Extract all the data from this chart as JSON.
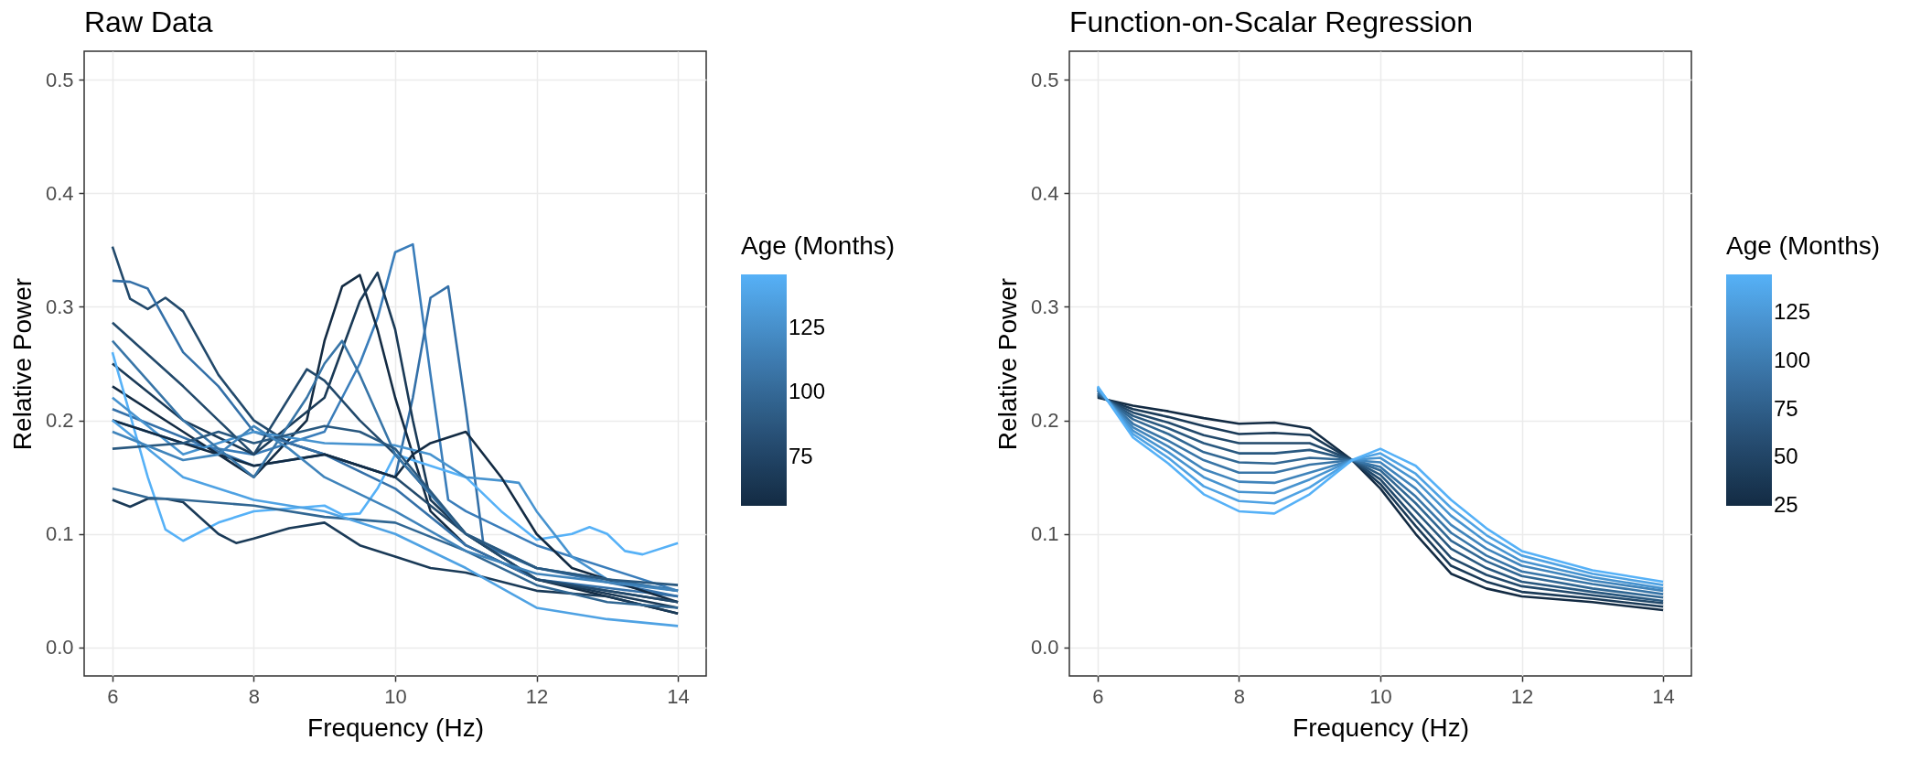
{
  "chart_data": [
    {
      "type": "line",
      "title": "Raw Data",
      "xlabel": "Frequency (Hz)",
      "ylabel": "Relative Power",
      "clabel": "Age (Months)",
      "clim": [
        56,
        146
      ],
      "cticks": [
        75,
        100,
        125
      ],
      "xlim": [
        5.6,
        14.4
      ],
      "xticks": [
        6,
        8,
        10,
        12,
        14
      ],
      "ylim": [
        -0.025,
        0.525
      ],
      "yticks": [
        {
          "value": 0,
          "label": "0.0"
        },
        0.1,
        0.2,
        0.3,
        0.4,
        0.5
      ],
      "grid": true,
      "line_style": "solid",
      "series": [
        {
          "color": "#3A7DBA",
          "x": [
            6,
            7,
            8,
            9,
            9.5,
            9.75,
            10,
            10.25,
            10.5,
            10.75,
            11,
            12,
            14
          ],
          "values": [
            0.2,
            0.18,
            0.17,
            0.19,
            0.25,
            0.29,
            0.348,
            0.355,
            0.24,
            0.13,
            0.12,
            0.09,
            0.05
          ]
        },
        {
          "color": "#3470A8",
          "x": [
            6,
            8,
            9,
            10,
            10.25,
            10.5,
            10.75,
            11,
            11.25,
            12,
            14
          ],
          "values": [
            0.21,
            0.16,
            0.17,
            0.15,
            0.22,
            0.308,
            0.318,
            0.21,
            0.09,
            0.07,
            0.045
          ]
        },
        {
          "color": "#132B43",
          "x": [
            6,
            7,
            8,
            8.75,
            9,
            9.25,
            9.5,
            9.75,
            10,
            10.5,
            11,
            12,
            14
          ],
          "values": [
            0.23,
            0.19,
            0.15,
            0.2,
            0.27,
            0.318,
            0.328,
            0.28,
            0.22,
            0.12,
            0.09,
            0.06,
            0.03
          ]
        },
        {
          "color": "#1A3A57",
          "x": [
            6,
            7,
            8,
            9,
            9.5,
            9.75,
            10,
            10.25,
            10.5,
            11,
            12,
            14
          ],
          "values": [
            0.25,
            0.2,
            0.17,
            0.22,
            0.305,
            0.33,
            0.28,
            0.2,
            0.13,
            0.1,
            0.06,
            0.035
          ]
        },
        {
          "color": "#22496B",
          "x": [
            6,
            6.25,
            6.5,
            6.75,
            7,
            7.5,
            8,
            8.5,
            9,
            10,
            11,
            12,
            14
          ],
          "values": [
            0.353,
            0.307,
            0.298,
            0.308,
            0.296,
            0.24,
            0.2,
            0.18,
            0.17,
            0.15,
            0.1,
            0.06,
            0.04
          ]
        },
        {
          "color": "#3470A8",
          "x": [
            6,
            6.25,
            6.5,
            7,
            7.5,
            8,
            9,
            10,
            11,
            12,
            14
          ],
          "values": [
            0.323,
            0.322,
            0.316,
            0.26,
            0.23,
            0.19,
            0.17,
            0.14,
            0.09,
            0.06,
            0.045
          ]
        },
        {
          "color": "#56B1F7",
          "x": [
            6,
            6.5,
            6.75,
            7,
            7.5,
            8,
            9,
            9.25,
            9.5,
            9.75,
            10,
            11,
            11.5,
            12,
            12.5,
            12.75,
            13,
            13.25,
            13.5,
            14
          ],
          "values": [
            0.26,
            0.15,
            0.104,
            0.094,
            0.11,
            0.12,
            0.125,
            0.117,
            0.118,
            0.14,
            0.17,
            0.15,
            0.12,
            0.095,
            0.1,
            0.106,
            0.1,
            0.085,
            0.082,
            0.092
          ]
        },
        {
          "color": "#4793CF",
          "x": [
            6,
            7,
            8,
            9,
            10,
            10.5,
            11,
            11.5,
            11.75,
            12,
            12.5,
            13,
            14
          ],
          "values": [
            0.22,
            0.17,
            0.19,
            0.18,
            0.178,
            0.17,
            0.15,
            0.147,
            0.145,
            0.12,
            0.08,
            0.06,
            0.05
          ]
        },
        {
          "color": "#132B43",
          "x": [
            6,
            7,
            8,
            9,
            10,
            10.25,
            10.5,
            10.75,
            11,
            11.5,
            12,
            12.5,
            14
          ],
          "values": [
            0.2,
            0.18,
            0.16,
            0.17,
            0.15,
            0.17,
            0.18,
            0.185,
            0.19,
            0.15,
            0.1,
            0.07,
            0.04
          ]
        },
        {
          "color": "#1A3A57",
          "x": [
            6,
            6.25,
            6.5,
            6.75,
            7,
            7.5,
            7.75,
            8,
            8.5,
            9,
            9.5,
            10,
            10.5,
            11,
            12,
            13,
            14
          ],
          "values": [
            0.13,
            0.124,
            0.131,
            0.131,
            0.128,
            0.1,
            0.092,
            0.096,
            0.105,
            0.11,
            0.09,
            0.08,
            0.07,
            0.066,
            0.05,
            0.045,
            0.03
          ]
        },
        {
          "color": "#316793",
          "x": [
            6,
            6.5,
            7,
            8,
            9,
            10,
            11,
            12,
            13,
            14
          ],
          "values": [
            0.14,
            0.132,
            0.13,
            0.125,
            0.115,
            0.11,
            0.085,
            0.055,
            0.04,
            0.035
          ]
        },
        {
          "color": "#4FA2E3",
          "x": [
            6,
            7,
            8,
            9,
            10,
            11,
            12,
            13,
            14
          ],
          "values": [
            0.2,
            0.15,
            0.13,
            0.12,
            0.1,
            0.07,
            0.035,
            0.025,
            0.019
          ]
        },
        {
          "color": "#22496B",
          "x": [
            6,
            7,
            7.5,
            8,
            8.5,
            8.75,
            9,
            9.5,
            10,
            11,
            12,
            14
          ],
          "values": [
            0.286,
            0.23,
            0.2,
            0.17,
            0.22,
            0.245,
            0.235,
            0.2,
            0.17,
            0.1,
            0.06,
            0.04
          ]
        },
        {
          "color": "#3875A7",
          "x": [
            6,
            7,
            8,
            8.75,
            9,
            9.25,
            9.5,
            10,
            11,
            12,
            14
          ],
          "values": [
            0.27,
            0.2,
            0.15,
            0.22,
            0.25,
            0.27,
            0.24,
            0.17,
            0.1,
            0.07,
            0.05
          ]
        },
        {
          "color": "#29587F",
          "x": [
            6,
            7,
            7.5,
            8,
            9,
            9.5,
            10,
            11,
            12,
            13,
            14
          ],
          "values": [
            0.175,
            0.18,
            0.19,
            0.18,
            0.195,
            0.19,
            0.175,
            0.1,
            0.07,
            0.06,
            0.055
          ]
        },
        {
          "color": "#4084BB",
          "x": [
            6,
            7,
            7.5,
            8,
            8.5,
            9,
            10,
            11,
            12,
            14
          ],
          "values": [
            0.19,
            0.165,
            0.17,
            0.195,
            0.175,
            0.15,
            0.12,
            0.085,
            0.065,
            0.05
          ]
        }
      ]
    },
    {
      "type": "line",
      "title": "Function-on-Scalar Regression",
      "xlabel": "Frequency (Hz)",
      "ylabel": "Relative Power",
      "clabel": "Age (Months)",
      "clim": [
        25,
        145
      ],
      "cticks": [
        25,
        50,
        75,
        100,
        125
      ],
      "xlim": [
        5.6,
        14.4
      ],
      "xticks": [
        6,
        8,
        10,
        12,
        14
      ],
      "ylim": [
        -0.025,
        0.525
      ],
      "yticks": [
        {
          "value": 0,
          "label": "0.0"
        },
        0.1,
        0.2,
        0.3,
        0.4,
        0.5
      ],
      "grid": true,
      "line_style": "solid",
      "x": [
        6,
        6.5,
        7,
        7.5,
        8,
        8.5,
        9,
        9.6,
        10,
        10.5,
        11,
        11.5,
        12,
        13,
        14
      ],
      "series": [
        {
          "color": "#132B43",
          "values": [
            0.22,
            0.213,
            0.208,
            0.202,
            0.197,
            0.198,
            0.193,
            0.165,
            0.14,
            0.1,
            0.065,
            0.052,
            0.045,
            0.04,
            0.033
          ]
        },
        {
          "color": "#1A3A57",
          "values": [
            0.221,
            0.21,
            0.203,
            0.195,
            0.188,
            0.189,
            0.187,
            0.165,
            0.144,
            0.107,
            0.072,
            0.058,
            0.049,
            0.043,
            0.036
          ]
        },
        {
          "color": "#22496B",
          "values": [
            0.222,
            0.207,
            0.198,
            0.187,
            0.18,
            0.18,
            0.18,
            0.165,
            0.148,
            0.113,
            0.079,
            0.064,
            0.054,
            0.046,
            0.039
          ]
        },
        {
          "color": "#29587F",
          "values": [
            0.223,
            0.204,
            0.193,
            0.18,
            0.171,
            0.171,
            0.174,
            0.165,
            0.152,
            0.12,
            0.087,
            0.07,
            0.058,
            0.049,
            0.041
          ]
        },
        {
          "color": "#316793",
          "values": [
            0.224,
            0.201,
            0.188,
            0.172,
            0.163,
            0.162,
            0.167,
            0.165,
            0.156,
            0.127,
            0.094,
            0.076,
            0.063,
            0.052,
            0.044
          ]
        },
        {
          "color": "#3875A7",
          "values": [
            0.226,
            0.197,
            0.182,
            0.165,
            0.154,
            0.154,
            0.161,
            0.165,
            0.159,
            0.133,
            0.101,
            0.081,
            0.067,
            0.056,
            0.047
          ]
        },
        {
          "color": "#4084BB",
          "values": [
            0.227,
            0.194,
            0.177,
            0.157,
            0.146,
            0.145,
            0.154,
            0.165,
            0.163,
            0.14,
            0.108,
            0.087,
            0.072,
            0.059,
            0.05
          ]
        },
        {
          "color": "#4793CF",
          "values": [
            0.228,
            0.191,
            0.172,
            0.15,
            0.137,
            0.136,
            0.148,
            0.165,
            0.167,
            0.147,
            0.116,
            0.093,
            0.076,
            0.062,
            0.052
          ]
        },
        {
          "color": "#4FA2E3",
          "values": [
            0.229,
            0.188,
            0.167,
            0.142,
            0.129,
            0.127,
            0.141,
            0.165,
            0.171,
            0.153,
            0.123,
            0.099,
            0.081,
            0.065,
            0.055
          ]
        },
        {
          "color": "#56B1F7",
          "values": [
            0.23,
            0.185,
            0.162,
            0.135,
            0.12,
            0.118,
            0.135,
            0.165,
            0.175,
            0.16,
            0.13,
            0.105,
            0.085,
            0.068,
            0.058
          ]
        }
      ]
    }
  ]
}
